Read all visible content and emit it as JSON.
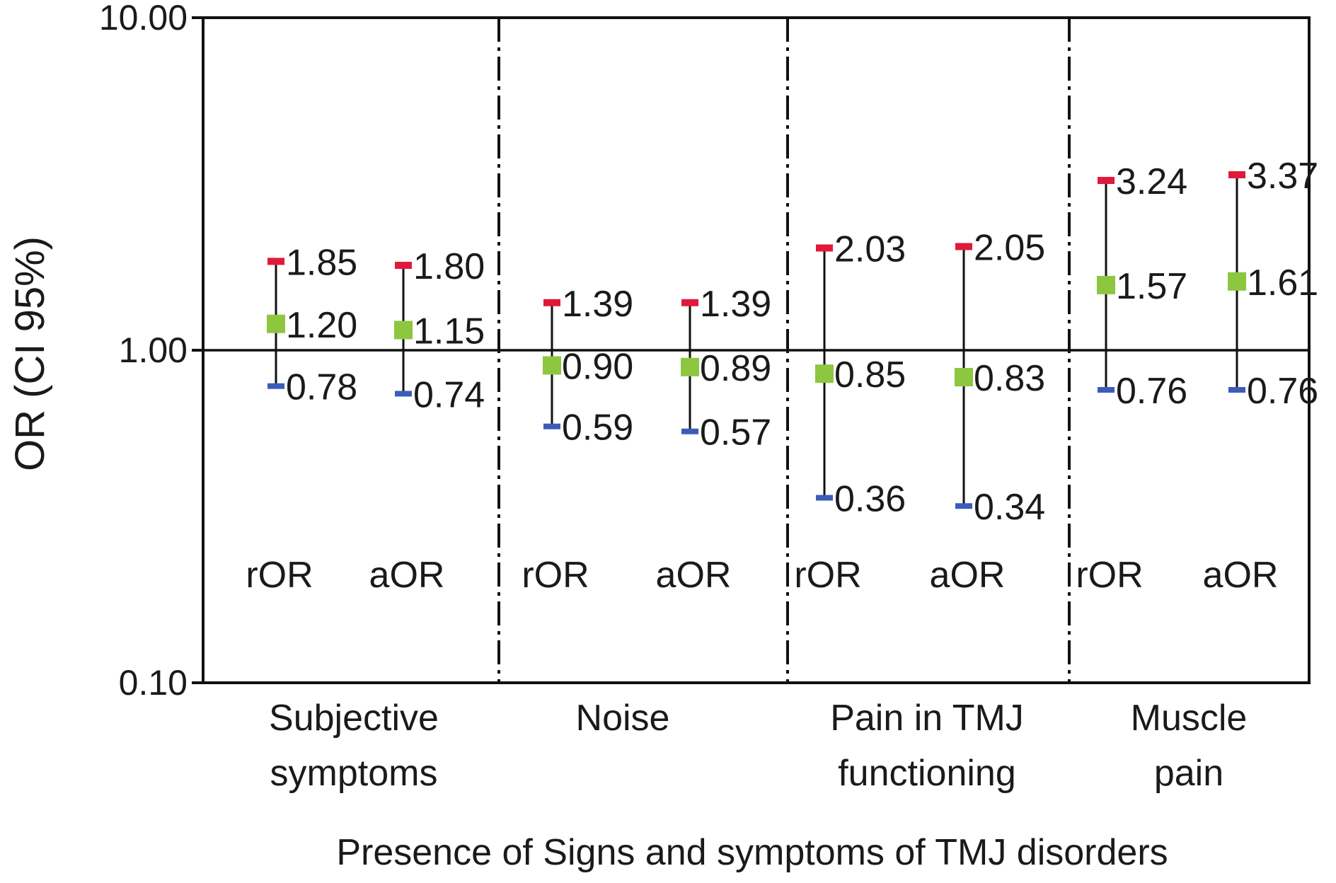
{
  "chart_data": {
    "type": "scatter",
    "subtype": "error-bar",
    "scale": "log",
    "ylabel": "OR (CI 95%)",
    "xlabel": "Presence of Signs and symptoms of TMJ disorders",
    "ylim": [
      0.1,
      10
    ],
    "yticks": [
      "10.00",
      "1.00",
      "0.10"
    ],
    "grid": false,
    "reference_line": 1,
    "colors": {
      "upper": "#e0193a",
      "estimate": "#8dc63f",
      "lower": "#3b5cb8",
      "line": "#111111"
    },
    "groups": [
      {
        "name_lines": [
          "Subjective",
          "symptoms"
        ],
        "items": [
          {
            "label": "rOR",
            "lower": 0.78,
            "est": 1.2,
            "upper": 1.85,
            "lower_text": "0.78",
            "est_text": "1.20",
            "upper_text": "1.85"
          },
          {
            "label": "aOR",
            "lower": 0.74,
            "est": 1.15,
            "upper": 1.8,
            "lower_text": "0.74",
            "est_text": "1.15",
            "upper_text": "1.80"
          }
        ]
      },
      {
        "name_lines": [
          "Noise"
        ],
        "items": [
          {
            "label": "rOR",
            "lower": 0.59,
            "est": 0.9,
            "upper": 1.39,
            "lower_text": "0.59",
            "est_text": "0.90",
            "upper_text": "1.39"
          },
          {
            "label": "aOR",
            "lower": 0.57,
            "est": 0.89,
            "upper": 1.39,
            "lower_text": "0.57",
            "est_text": "0.89",
            "upper_text": "1.39"
          }
        ]
      },
      {
        "name_lines": [
          "Pain in TMJ",
          "functioning"
        ],
        "items": [
          {
            "label": "rOR",
            "lower": 0.36,
            "est": 0.85,
            "upper": 2.03,
            "lower_text": "0.36",
            "est_text": "0.85",
            "upper_text": "2.03"
          },
          {
            "label": "aOR",
            "lower": 0.34,
            "est": 0.83,
            "upper": 2.05,
            "lower_text": "0.34",
            "est_text": "0.83",
            "upper_text": "2.05"
          }
        ]
      },
      {
        "name_lines": [
          "Muscle",
          "pain"
        ],
        "items": [
          {
            "label": "rOR",
            "lower": 0.76,
            "est": 1.57,
            "upper": 3.24,
            "lower_text": "0.76",
            "est_text": "1.57",
            "upper_text": "3.24"
          },
          {
            "label": "aOR",
            "lower": 0.76,
            "est": 1.61,
            "upper": 3.37,
            "lower_text": "0.76",
            "est_text": "1.61",
            "upper_text": "3.37"
          }
        ]
      }
    ]
  }
}
